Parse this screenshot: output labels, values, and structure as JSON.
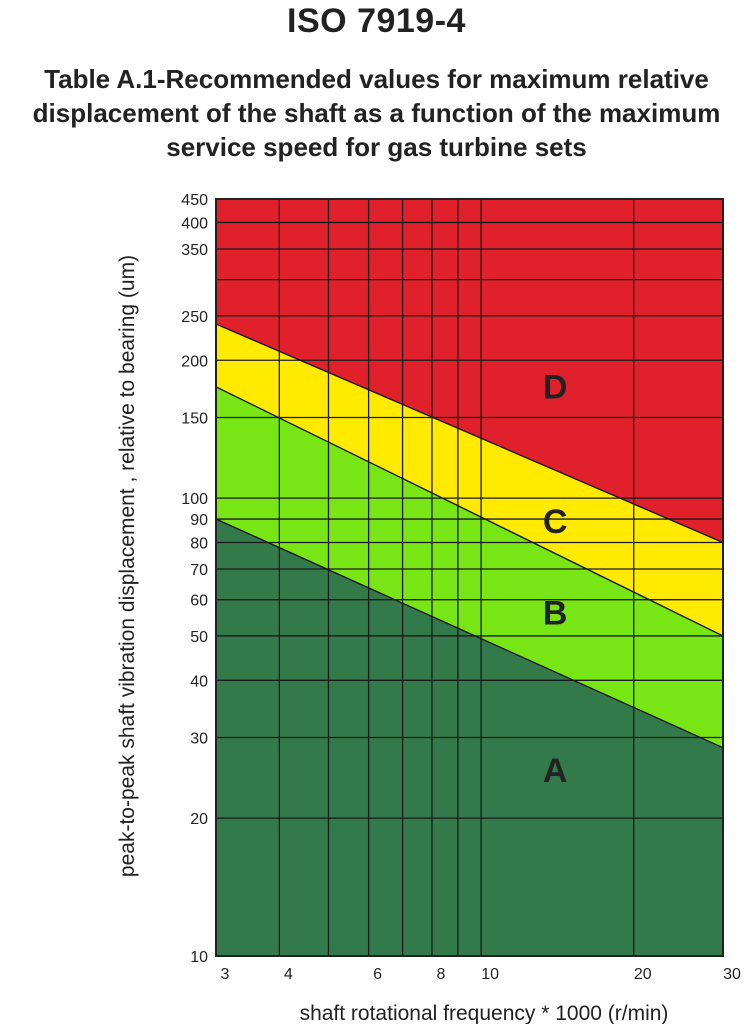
{
  "title": "ISO 7919-4",
  "subtitle_lines": [
    "Table A.1-Recommended values for maximum relative",
    "displacement of the shaft as a function of the maximum",
    "service speed for gas turbine sets"
  ],
  "chart_data": {
    "type": "area",
    "xlabel": "shaft rotational frequency * 1000 (r/min)",
    "ylabel": "peak-to-peak shaft vibration displacement , relative to bearing (um)",
    "xscale": "log",
    "yscale": "log",
    "xlim": [
      3,
      30
    ],
    "ylim": [
      10,
      450
    ],
    "x_ticks": [
      3,
      4,
      6,
      8,
      10,
      20,
      30
    ],
    "y_ticks": [
      10,
      20,
      30,
      40,
      50,
      60,
      70,
      80,
      90,
      100,
      150,
      200,
      250,
      350,
      400,
      450
    ],
    "x_grid": [
      3,
      4,
      5,
      6,
      7,
      8,
      9,
      10,
      20,
      30
    ],
    "y_grid": [
      10,
      20,
      30,
      40,
      50,
      60,
      70,
      80,
      90,
      100,
      150,
      200,
      250,
      300,
      350,
      400,
      450
    ],
    "grid": true,
    "boundaries": [
      {
        "name": "A/B",
        "x": [
          3,
          30
        ],
        "y": [
          90,
          28.5
        ]
      },
      {
        "name": "B/C",
        "x": [
          3,
          30
        ],
        "y": [
          175,
          50
        ]
      },
      {
        "name": "C/D",
        "x": [
          3,
          30
        ],
        "y": [
          240,
          80
        ]
      }
    ],
    "zones": [
      {
        "label": "A",
        "color": "#337a4a",
        "label_pos": [
          14,
          24
        ]
      },
      {
        "label": "B",
        "color": "#78e614",
        "label_pos": [
          14,
          53
        ]
      },
      {
        "label": "C",
        "color": "#ffea00",
        "label_pos": [
          14,
          84
        ]
      },
      {
        "label": "D",
        "color": "#e0202a",
        "label_pos": [
          14,
          165
        ]
      }
    ]
  }
}
